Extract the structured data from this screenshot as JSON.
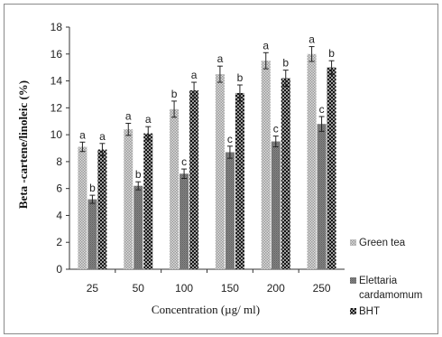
{
  "chart_data": {
    "type": "bar",
    "title": "",
    "xlabel": "Concentration (µg/ ml)",
    "ylabel": "Beta -cartene/linoleic (%)",
    "ylim": [
      0,
      18
    ],
    "yticks": [
      "0",
      "2",
      "4",
      "6",
      "8",
      "10",
      "12",
      "14",
      "16",
      "18"
    ],
    "categories": [
      "25",
      "50",
      "100",
      "150",
      "200",
      "250"
    ],
    "series": [
      {
        "name": "Green tea",
        "values": [
          9.1,
          10.4,
          11.9,
          14.5,
          15.5,
          16.0
        ],
        "errors": [
          0.35,
          0.45,
          0.6,
          0.6,
          0.6,
          0.55
        ],
        "letters": [
          "a",
          "a",
          "b",
          "a",
          "a",
          "a"
        ],
        "pattern": "pat-green-tea"
      },
      {
        "name": "Elettaria cardamomum",
        "values": [
          5.2,
          6.2,
          7.1,
          8.7,
          9.5,
          10.8
        ],
        "errors": [
          0.3,
          0.3,
          0.35,
          0.45,
          0.4,
          0.55
        ],
        "letters": [
          "b",
          "b",
          "c",
          "c",
          "c",
          "c"
        ],
        "pattern": "pat-cardamom"
      },
      {
        "name": "BHT",
        "values": [
          8.9,
          10.1,
          13.3,
          13.1,
          14.2,
          15.0
        ],
        "errors": [
          0.45,
          0.5,
          0.6,
          0.6,
          0.6,
          0.5
        ],
        "letters": [
          "a",
          "a",
          "a",
          "b",
          "b",
          "b"
        ],
        "pattern": "pat-bht"
      }
    ],
    "legend": {
      "position": "right",
      "labels": [
        "Green tea",
        "Elettaria cardamomum",
        "BHT"
      ]
    },
    "grid": false
  }
}
